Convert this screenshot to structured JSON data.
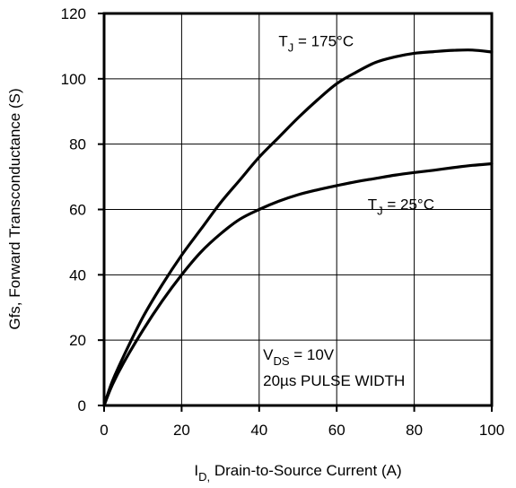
{
  "chart_data": {
    "type": "line",
    "xlabel": {
      "main": "I",
      "sub": "D,",
      "rest": " Drain-to-Source Current (A)"
    },
    "ylabel": "Gfs, Forward Transconductance (S)",
    "xlim": [
      0,
      100
    ],
    "ylim": [
      0,
      120
    ],
    "x_ticks": [
      0,
      20,
      40,
      60,
      80,
      100
    ],
    "y_ticks": [
      0,
      20,
      40,
      60,
      80,
      100,
      120
    ],
    "grid": true,
    "series": [
      {
        "x": [
          0,
          2,
          5,
          10,
          15,
          20,
          25,
          30,
          35,
          40,
          45,
          50,
          55,
          60,
          65,
          70,
          75,
          80,
          85,
          90,
          95,
          100
        ],
        "y": [
          0,
          7,
          15,
          27,
          37,
          46,
          54,
          62,
          69,
          76,
          82,
          88,
          93.5,
          98.5,
          102,
          105,
          106.7,
          107.8,
          108.3,
          108.7,
          108.8,
          108.2
        ]
      },
      {
        "x": [
          0,
          2,
          5,
          10,
          15,
          20,
          25,
          30,
          35,
          40,
          45,
          50,
          55,
          60,
          65,
          70,
          75,
          80,
          85,
          90,
          95,
          100
        ],
        "y": [
          0,
          6,
          13,
          23,
          32,
          40,
          47,
          52.5,
          57,
          60,
          62.5,
          64.5,
          66,
          67.3,
          68.5,
          69.5,
          70.5,
          71.3,
          72,
          72.8,
          73.5,
          74
        ]
      }
    ],
    "annotations": [
      {
        "id": "tj175",
        "text_main": "T",
        "text_sub": "J",
        "text_rest": " = 175°C",
        "x": 45,
        "y": 110
      },
      {
        "id": "tj25",
        "text_main": "T",
        "text_sub": "J",
        "text_rest": " = 25°C",
        "x": 68,
        "y": 60
      },
      {
        "id": "vds",
        "text_main": "V",
        "text_sub": "DS",
        "text_rest": " = 10V",
        "x": 41,
        "y": 14
      },
      {
        "id": "pulse",
        "text_main": "20µs PULSE WIDTH",
        "text_sub": "",
        "text_rest": "",
        "x": 41,
        "y": 6
      }
    ]
  }
}
